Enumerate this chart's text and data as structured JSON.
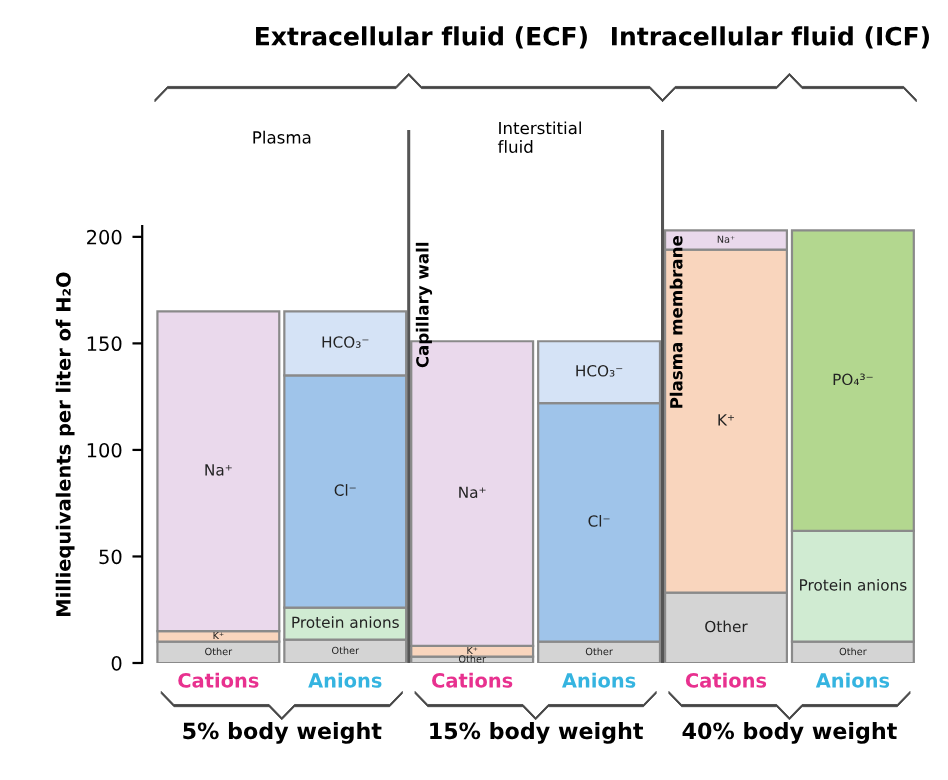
{
  "chart_data": {
    "type": "bar",
    "stacked": true,
    "ylabel": "Milliequivalents per liter of H₂O",
    "categories": [
      "Cations",
      "Anions",
      "Cations",
      "Anions",
      "Cations",
      "Anions"
    ],
    "series": [
      {
        "name": "Other",
        "color": "#d4d4d4",
        "values": [
          10,
          11,
          3,
          10,
          33,
          10
        ]
      },
      {
        "name": "K⁺",
        "color": "#f9d5bd",
        "values": [
          5,
          null,
          5,
          null,
          161,
          null
        ]
      },
      {
        "name": "Protein anions",
        "color": "#d0ebd2",
        "values": [
          null,
          15,
          null,
          null,
          null,
          52
        ]
      },
      {
        "name": "Na⁺",
        "color": "#ead9ec",
        "values": [
          150,
          null,
          143,
          null,
          9,
          null
        ]
      },
      {
        "name": "Cl⁻",
        "color": "#9fc4ea",
        "values": [
          null,
          109,
          null,
          112,
          null,
          null
        ]
      },
      {
        "name": "PO₄³⁻",
        "color": "#b3d78f",
        "values": [
          null,
          null,
          null,
          null,
          null,
          141
        ]
      },
      {
        "name": "HCO₃⁻",
        "color": "#d5e3f6",
        "values": [
          null,
          30,
          null,
          29,
          null,
          null
        ]
      }
    ],
    "ylim": [
      0,
      205
    ],
    "yticks": [
      0,
      50,
      100,
      150,
      200
    ],
    "grid": false,
    "legend": false,
    "annotations": [
      "Extracellular fluid (ECF)",
      "Intracellular fluid (ICF)",
      "Plasma",
      "Interstitial\nfluid",
      "Capillary wall",
      "Plasma membrane",
      "5% body weight",
      "15% body weight",
      "40% body weight"
    ]
  }
}
